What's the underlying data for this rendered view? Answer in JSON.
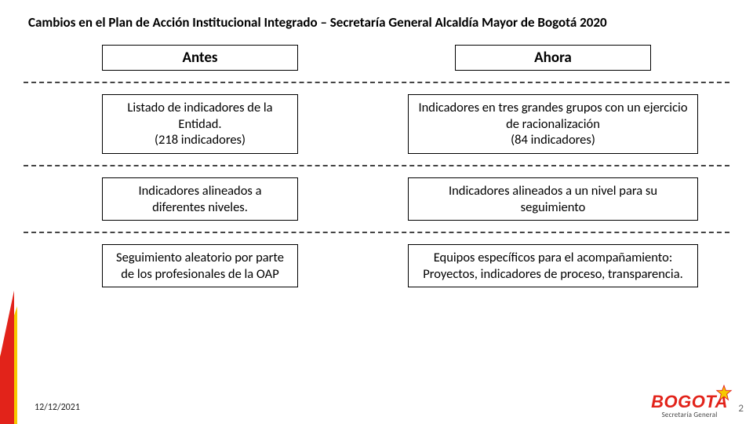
{
  "title": "Cambios en el Plan de Acción Institucional Integrado – Secretaría General Alcaldía Mayor de Bogotá 2020",
  "headers": {
    "left": "Antes",
    "right": "Ahora"
  },
  "rows": [
    {
      "left": "Listado de indicadores de la Entidad.\n(218 indicadores)",
      "right": "Indicadores en tres grandes grupos con un ejercicio de racionalización\n(84 indicadores)"
    },
    {
      "left": "Indicadores alineados a diferentes niveles.",
      "right": "Indicadores alineados a un nivel para su seguimiento"
    },
    {
      "left": "Seguimiento aleatorio por parte de los profesionales de la OAP",
      "right": "Equipos específicos para el acompañamiento: Proyectos, indicadores de proceso, transparencia."
    }
  ],
  "footer": {
    "date": "12/12/2021",
    "slide_number": "2"
  },
  "logo": {
    "text": "BOGOTA",
    "subtitle": "Secretaría General"
  },
  "style": {
    "slide_width": 960,
    "slide_height": 540,
    "title_fontsize": 17,
    "title_weight": "700",
    "header_fontsize": 19,
    "content_fontsize": 16.5,
    "box_border_color": "#000000",
    "box_border_width": 1.5,
    "divider_style": "dashed",
    "divider_color": "#444444",
    "left_box_width": 250,
    "right_box_width": 370,
    "header_box_width": 250,
    "background_color": "#ffffff",
    "accent_red": "#e2231a",
    "accent_yellow": "#f6c900",
    "logo_color": "#e2231a",
    "logo_fontsize": 22,
    "date_fontsize": 12,
    "slidenum_fontsize": 13
  }
}
